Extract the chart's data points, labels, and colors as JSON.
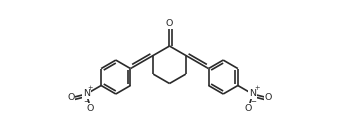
{
  "background_color": "#ffffff",
  "line_color": "#2a2a2a",
  "line_width": 1.2,
  "figsize": [
    3.39,
    1.34
  ],
  "dpi": 100,
  "xlim": [
    -3.8,
    3.8
  ],
  "ylim": [
    -1.5,
    1.5
  ],
  "ring_r": 0.38,
  "ph_r": 0.35
}
